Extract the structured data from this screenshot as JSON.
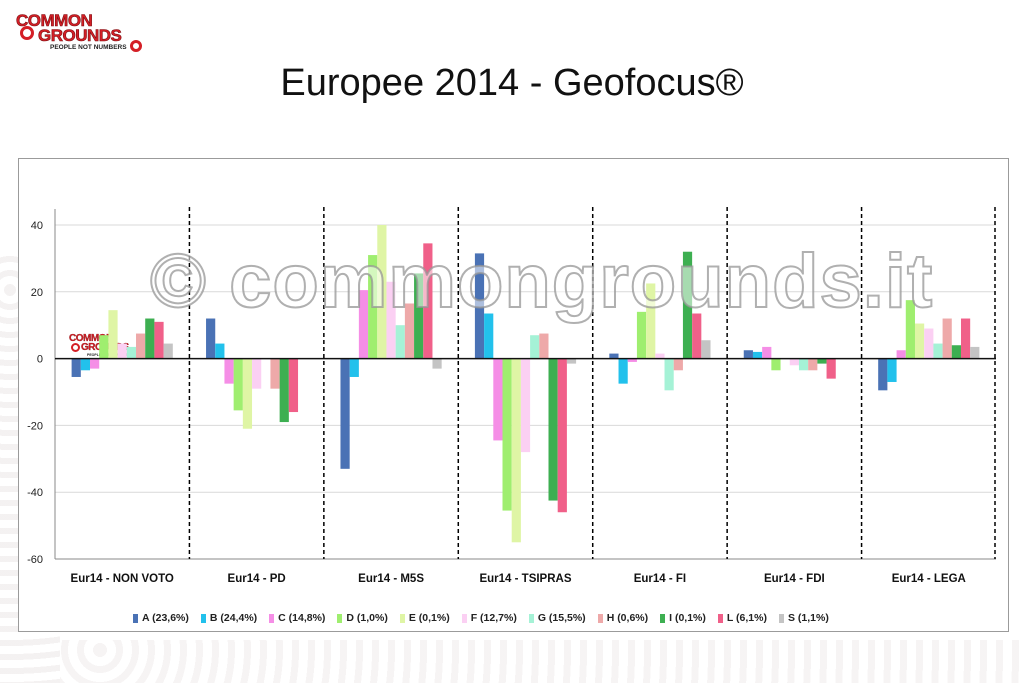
{
  "slide": {
    "title": "Europee 2014 - Geofocus®",
    "logo": {
      "line1": "COMMON",
      "line2": "GROUNDS",
      "tagline": "PEOPLE NOT NUMBERS"
    },
    "watermark": "© commongrounds.it"
  },
  "colors": {
    "accent": "#d41f26",
    "grid": "#d9d9d9",
    "divider": "#000000"
  },
  "chart_data": {
    "type": "bar",
    "title": "",
    "xlabel": "",
    "ylabel": "",
    "ylim": [
      -60,
      45
    ],
    "yticks": [
      40,
      20,
      0,
      -20,
      -40,
      -60
    ],
    "grid": true,
    "legend_position": "bottom",
    "categories": [
      "Eur14 - NON VOTO",
      "Eur14 - PD",
      "Eur14 - M5S",
      "Eur14 - TSIPRAS",
      "Eur14 - FI",
      "Eur14 - FDI",
      "Eur14 - LEGA"
    ],
    "series": [
      {
        "name": "A (23,6%)",
        "color": "#4a72b5",
        "values": [
          -5.5,
          12,
          -33,
          31.5,
          1.5,
          2.5,
          -9.5
        ]
      },
      {
        "name": "B (24,4%)",
        "color": "#22c1ec",
        "values": [
          -3.5,
          4.5,
          -5.5,
          13.5,
          -7.5,
          2,
          -7
        ]
      },
      {
        "name": "C (14,8%)",
        "color": "#f58ee6",
        "values": [
          -3,
          -7.5,
          20.5,
          -24.5,
          -1,
          3.5,
          2.5
        ]
      },
      {
        "name": "D (1,0%)",
        "color": "#9fee6f",
        "values": [
          7,
          -15.5,
          31,
          -45.5,
          14,
          -3.5,
          17.5
        ]
      },
      {
        "name": "E (0,1%)",
        "color": "#dff5a5",
        "values": [
          14.5,
          -21,
          40,
          -55,
          22.5,
          0,
          10.5
        ]
      },
      {
        "name": "F (12,7%)",
        "color": "#fbd0f3",
        "values": [
          4.5,
          -9,
          23,
          -28,
          1.5,
          -2,
          9
        ]
      },
      {
        "name": "G (15,5%)",
        "color": "#a5f2d6",
        "values": [
          3.5,
          0,
          10,
          7,
          -9.5,
          -3.5,
          4.5
        ]
      },
      {
        "name": "H (0,6%)",
        "color": "#eea9a9",
        "values": [
          7.5,
          -9,
          16.5,
          7.5,
          -3.5,
          -3.5,
          12
        ]
      },
      {
        "name": "I (0,1%)",
        "color": "#3daf51",
        "values": [
          12,
          -19,
          25.5,
          -42.5,
          32,
          -1.5,
          4
        ]
      },
      {
        "name": "L (6,1%)",
        "color": "#f06089",
        "values": [
          11,
          -16,
          34.5,
          -46,
          13.5,
          -6,
          12
        ]
      },
      {
        "name": "S (1,1%)",
        "color": "#c4c4c4",
        "values": [
          4.5,
          0,
          -3,
          -1.5,
          5.5,
          0,
          3.5
        ]
      }
    ]
  }
}
